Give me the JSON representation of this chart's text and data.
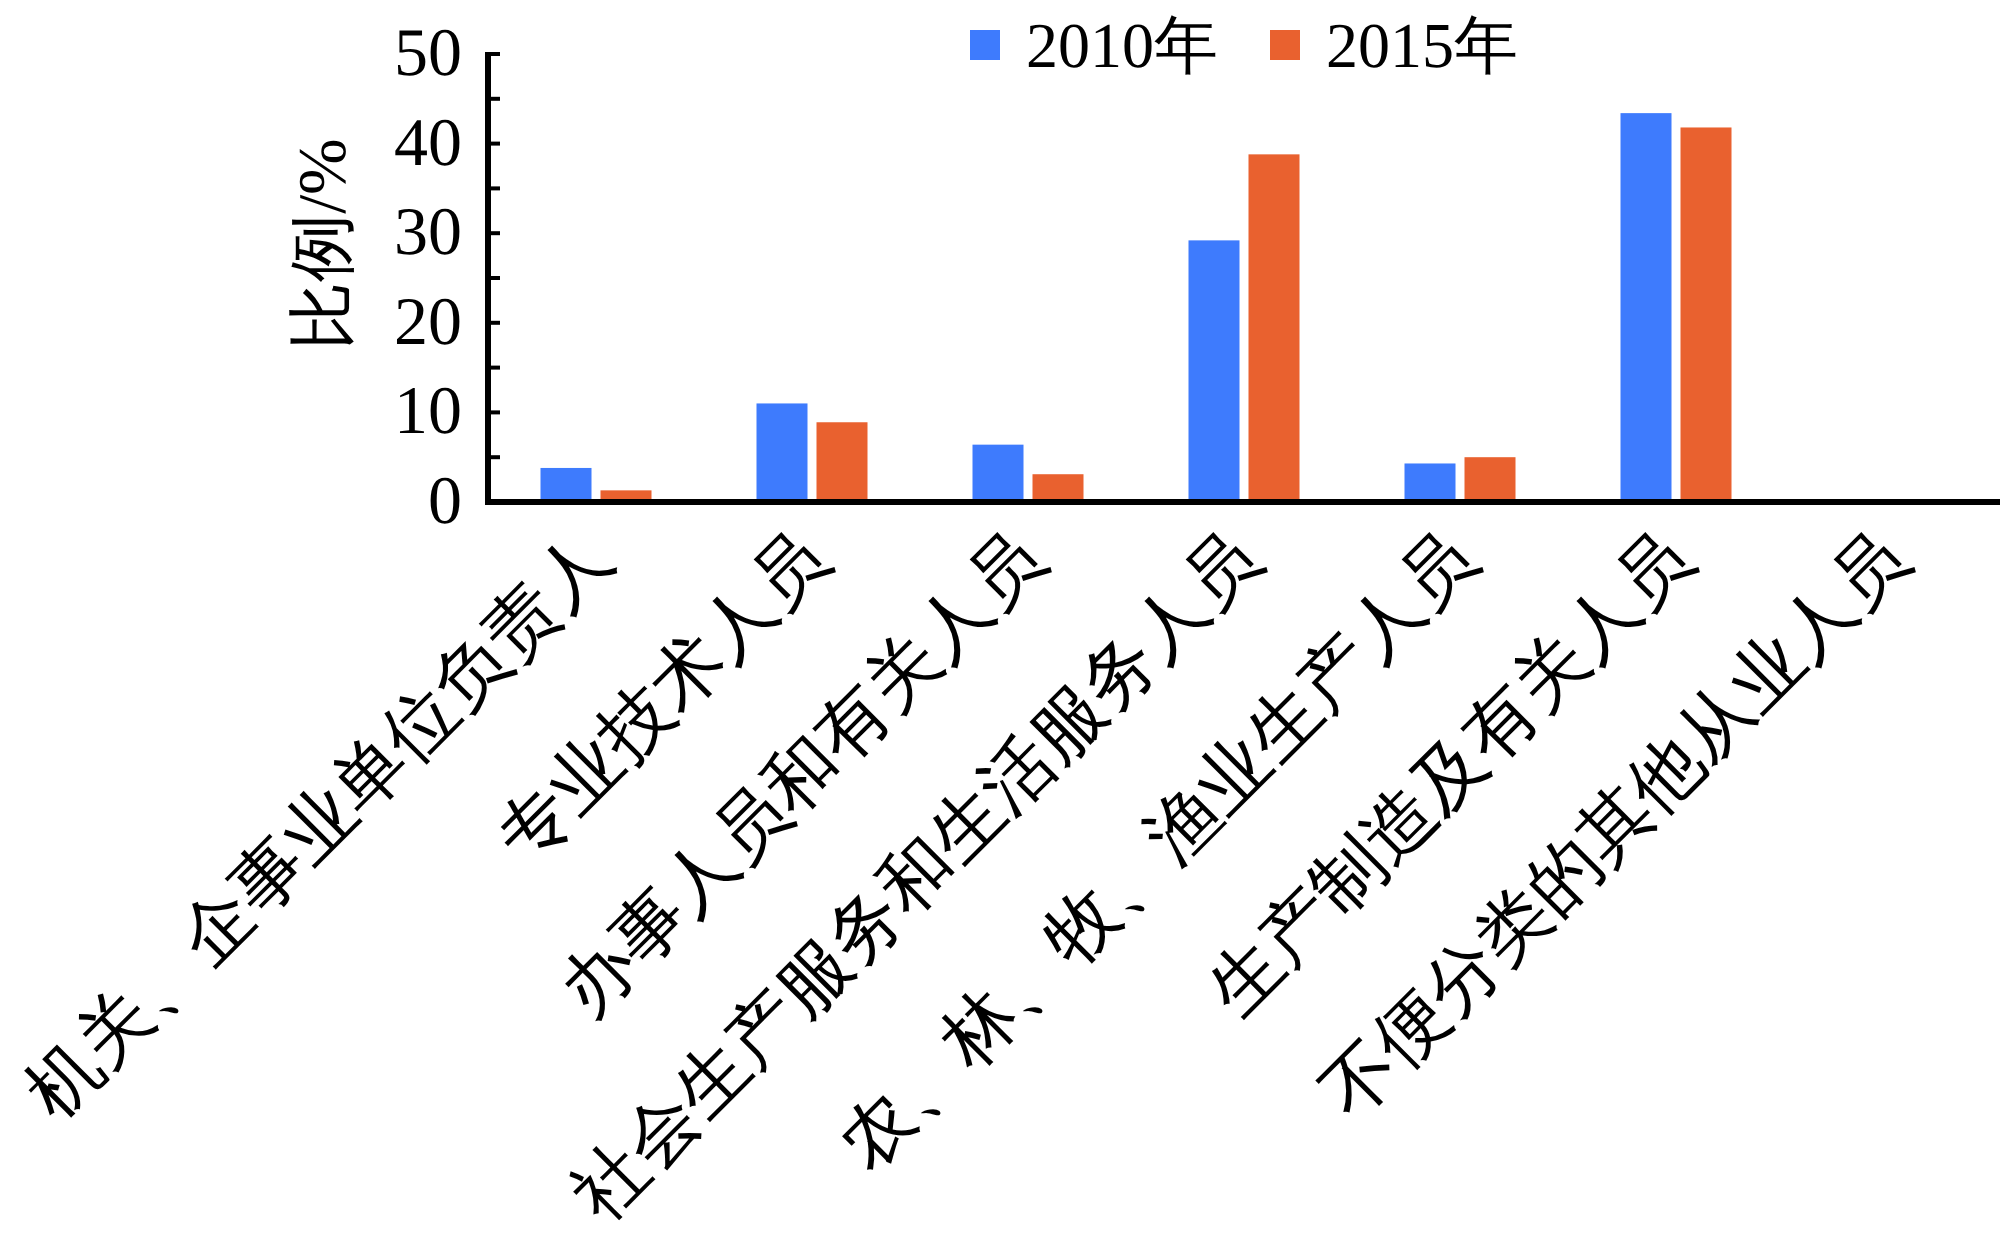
{
  "chart_data": {
    "type": "bar",
    "ylabel": "比例/%",
    "categories": [
      "机关、企事业单位负责人",
      "专业技术人员",
      "办事人员和有关人员",
      "社会生产服务和生活服务人员",
      "农、林、牧、渔业生产人员",
      "生产制造及有关人员",
      "不便分类的其他从业人员"
    ],
    "series": [
      {
        "name": "2010年",
        "color": "#3e7bfd",
        "values": [
          3.8,
          11.0,
          6.4,
          29.2,
          4.3,
          43.4,
          null
        ]
      },
      {
        "name": "2015年",
        "color": "#e9612f",
        "values": [
          1.3,
          8.9,
          3.1,
          38.8,
          5.0,
          41.8,
          null
        ]
      }
    ],
    "ylim": [
      0,
      50
    ],
    "yticks": [
      0,
      {
        "value": 5,
        "label": null
      },
      10,
      {
        "value": 15,
        "label": null
      },
      20,
      {
        "value": 25,
        "label": null
      },
      30,
      {
        "value": 35,
        "label": null
      },
      40,
      {
        "value": 45,
        "label": null
      },
      50
    ],
    "legend": "top"
  }
}
